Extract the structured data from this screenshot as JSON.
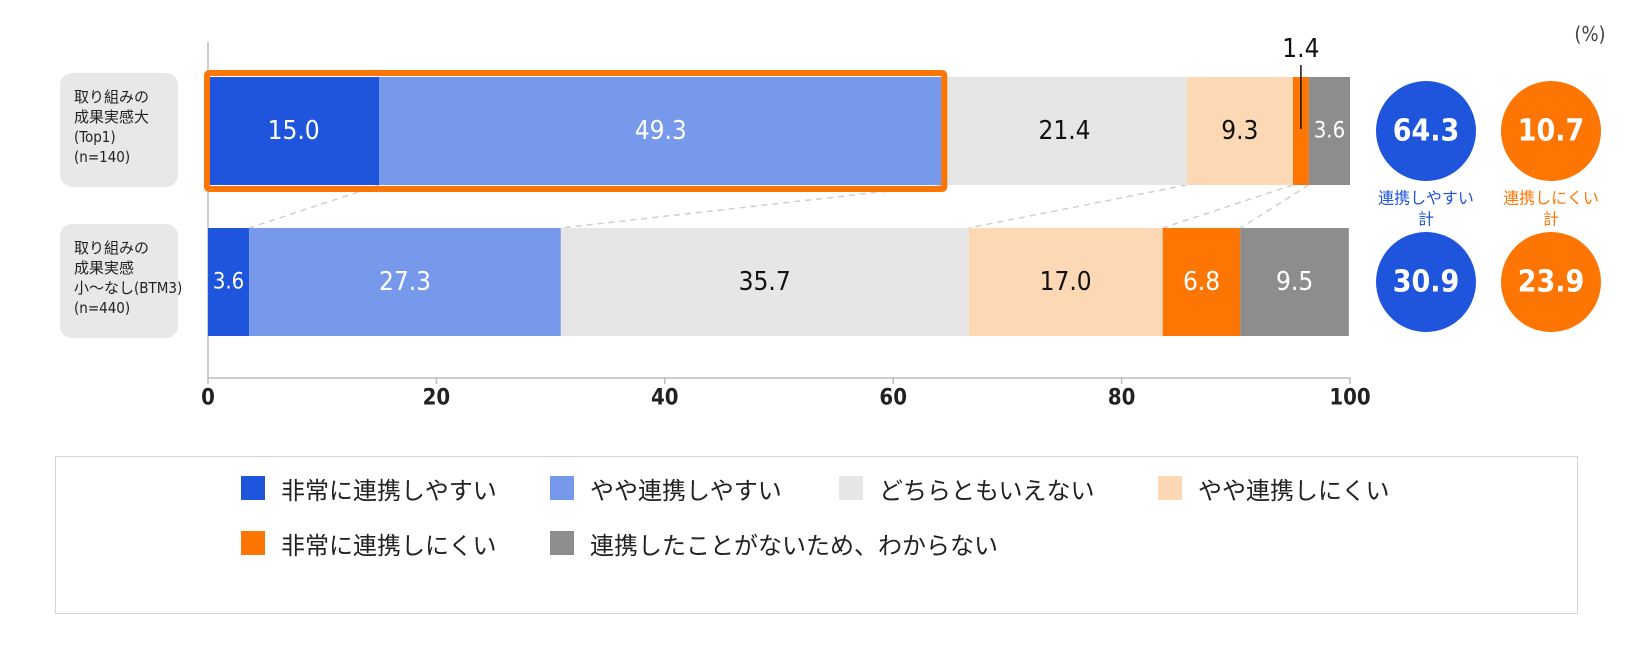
{
  "unit_label": "(%)",
  "chart_data": {
    "type": "bar",
    "orientation": "horizontal",
    "stacked": true,
    "xlim": [
      0,
      100
    ],
    "x_ticks": [
      "0",
      "20",
      "40",
      "60",
      "80",
      "100"
    ],
    "categories": [
      {
        "lines": [
          "取り組みの",
          "成果実感大",
          "(Top1)",
          "(n=140)"
        ]
      },
      {
        "lines": [
          "取り組みの",
          "成果実感",
          "小～なし(BTM3)",
          "(n=440)"
        ]
      }
    ],
    "series": [
      {
        "name": "非常に連携しやすい",
        "color": "#1f55dd",
        "values": [
          15.0,
          3.6
        ],
        "labels": [
          "15.0",
          "3.6"
        ]
      },
      {
        "name": "やや連携しやすい",
        "color": "#7799ec",
        "values": [
          49.3,
          27.3
        ],
        "labels": [
          "49.3",
          "27.3"
        ]
      },
      {
        "name": "どちらともいえない",
        "color": "#e6e6e6",
        "values": [
          21.4,
          35.7
        ],
        "labels": [
          "21.4",
          "35.7"
        ]
      },
      {
        "name": "やや連携しにくい",
        "color": "#fdd8b4",
        "values": [
          9.3,
          17.0
        ],
        "labels": [
          "9.3",
          "17.0"
        ]
      },
      {
        "name": "非常に連携しにくい",
        "color": "#fd7604",
        "values": [
          1.4,
          6.8
        ],
        "labels": [
          "1.4",
          "6.8"
        ]
      },
      {
        "name": "連携したことがないため、わからない",
        "color": "#8d8d8d",
        "values": [
          3.6,
          9.5
        ],
        "labels": [
          "3.6",
          "9.5"
        ]
      }
    ],
    "highlight": {
      "row": 0,
      "from": 0,
      "to": 64.3,
      "color": "#fd7604"
    },
    "totals": [
      {
        "caption": [
          "連携しやすい",
          "計"
        ],
        "color": "#1f55dd",
        "values": [
          "64.3",
          "30.9"
        ]
      },
      {
        "caption": [
          "連携しにくい",
          "計"
        ],
        "color": "#fd7604",
        "values": [
          "10.7",
          "23.9"
        ]
      }
    ]
  },
  "legend": {
    "items": [
      {
        "label": "非常に連携しやすい",
        "color": "#1f55dd"
      },
      {
        "label": "やや連携しやすい",
        "color": "#7799ec"
      },
      {
        "label": "どちらともいえない",
        "color": "#e6e6e6"
      },
      {
        "label": "やや連携しにくい",
        "color": "#fdd8b4"
      },
      {
        "label": "非常に連携しにくい",
        "color": "#fd7604"
      },
      {
        "label": "連携したことがないため、わからない",
        "color": "#8d8d8d"
      }
    ]
  }
}
